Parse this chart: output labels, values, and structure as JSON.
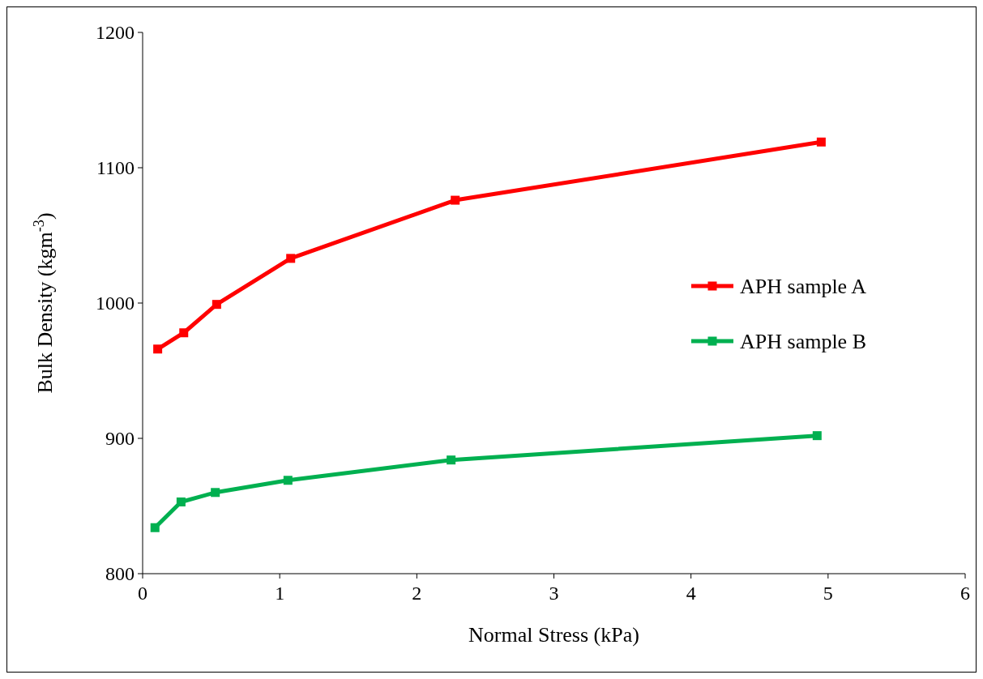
{
  "chart_data": {
    "type": "line",
    "xlabel": "Normal Stress (kPa)",
    "ylabel": "Bulk Density (kgm$^{-3}$)",
    "xlim": [
      0,
      6
    ],
    "xticks": [
      0,
      1,
      2,
      3,
      4,
      5,
      6
    ],
    "ylim": [
      800,
      1200
    ],
    "yticks": [
      800,
      900,
      1000,
      1100,
      1200
    ],
    "grid": false,
    "legend": "right",
    "marker": "square",
    "line_style": "solid",
    "series": [
      {
        "name": "APH sample A",
        "color": "#ff0000",
        "x": [
          0.11,
          0.3,
          0.54,
          1.08,
          2.28,
          4.95
        ],
        "values": [
          966,
          978,
          999,
          1033,
          1076,
          1119
        ]
      },
      {
        "name": "APH sample B",
        "color": "#00b050",
        "x": [
          0.09,
          0.28,
          0.53,
          1.06,
          2.25,
          4.92
        ],
        "values": [
          834,
          853,
          860,
          869,
          884,
          902
        ]
      }
    ]
  }
}
